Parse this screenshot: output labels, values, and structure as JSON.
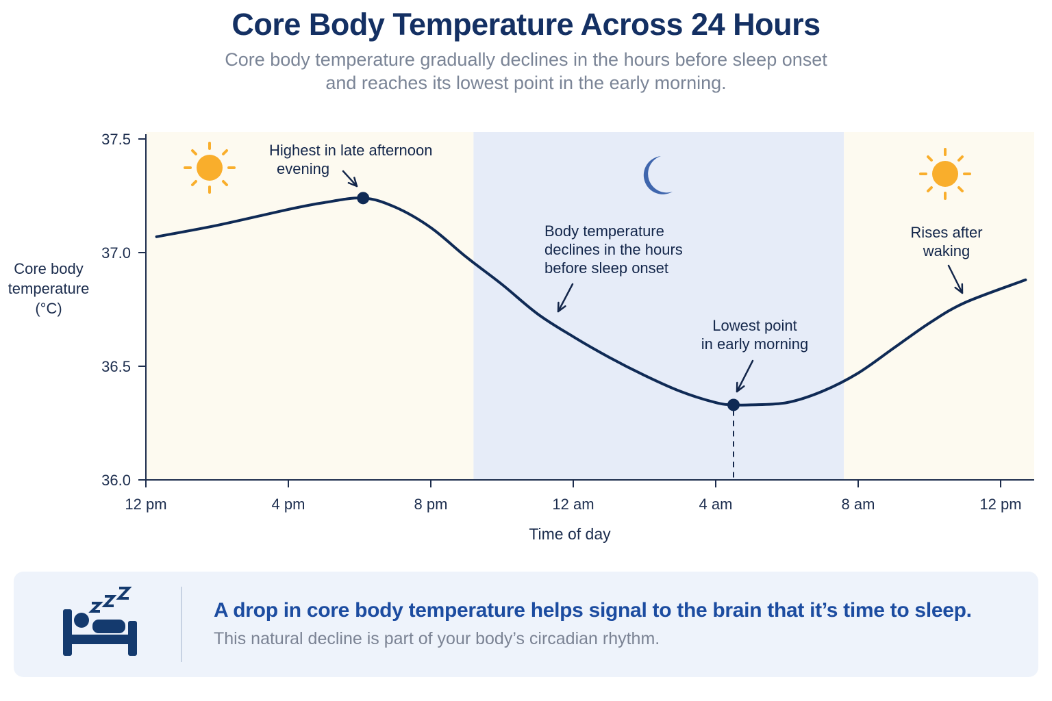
{
  "title": "Core Body Temperature Across 24 Hours",
  "subtitle_lines": [
    "Core body temperature gradually declines in the hours before sleep onset",
    "and reaches its lowest point in the early morning."
  ],
  "colors": {
    "line": "#0f2a55",
    "day_band": "#fdfaf0",
    "night_band": "#e6ecf8",
    "sun": "#f9ae2c",
    "moon": "#3f66ad",
    "accent": "#1c4ca0"
  },
  "icons": [
    "sun-icon",
    "moon-icon",
    "sleeping-bed-icon"
  ],
  "chart_data": {
    "type": "line",
    "xlabel": "Time of day",
    "ylabel_lines": [
      "Core body",
      "temperature",
      "(°C)"
    ],
    "x_tick_labels": [
      "12 pm",
      "4 pm",
      "8 pm",
      "12 am",
      "4 am",
      "8 am",
      "12 pm"
    ],
    "x_ticks_hours": [
      0,
      4,
      8,
      12,
      16,
      20,
      24
    ],
    "xlim_hours": [
      0,
      24.9
    ],
    "x_note": "hours elapsed since 12 pm",
    "ylim": [
      36.0,
      37.5
    ],
    "y_ticks": [
      36.0,
      36.5,
      37.0,
      37.5
    ],
    "y_tick_labels": [
      "36.0",
      "36.5",
      "37.0",
      "37.5"
    ],
    "grid": false,
    "night_band_hours": [
      9.2,
      19.6
    ],
    "series": [
      {
        "x": [
          0.3,
          2,
          4,
          5,
          6.1,
          7,
          8,
          9,
          10,
          11,
          12,
          13,
          14,
          15,
          16,
          16.5,
          17,
          18,
          19,
          20,
          21,
          22,
          23,
          24.7
        ],
        "values": [
          37.07,
          37.12,
          37.19,
          37.22,
          37.24,
          37.2,
          37.11,
          36.98,
          36.86,
          36.73,
          36.63,
          36.54,
          36.46,
          36.39,
          36.34,
          36.33,
          36.33,
          36.34,
          36.39,
          36.47,
          36.58,
          36.69,
          36.78,
          36.88
        ]
      }
    ],
    "points": [
      {
        "x": 6.1,
        "y": 37.24
      },
      {
        "x": 16.5,
        "y": 36.33
      }
    ],
    "annotations": [
      {
        "lines": [
          "Highest in late afternoon",
          "evening"
        ],
        "x": 6.1,
        "y": 37.24
      },
      {
        "lines": [
          "Body temperature",
          "declines in the hours",
          "before sleep onset"
        ],
        "x": 11.5,
        "y": 36.73
      },
      {
        "lines": [
          "Lowest point",
          "in early morning"
        ],
        "x": 16.5,
        "y": 36.33
      },
      {
        "lines": [
          "Rises after",
          "waking"
        ],
        "x": 23.8,
        "y": 36.82
      }
    ]
  },
  "panel": {
    "message": "A drop in core body temperature helps signal to the brain that it’s time to sleep.",
    "submessage": "This natural decline is part of your body’s circadian rhythm."
  }
}
